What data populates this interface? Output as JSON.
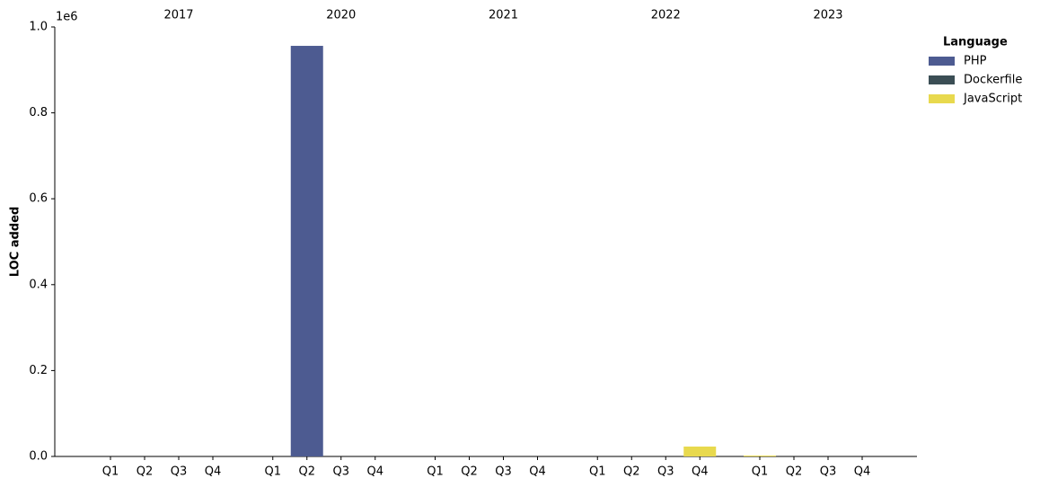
{
  "chart_data": {
    "type": "bar",
    "stacked": true,
    "y_label": "LOC added",
    "y_offset_label": "1e6",
    "legend_title": "Language",
    "legend_position": "upper right outside",
    "groups": [
      "2017",
      "2020",
      "2021",
      "2022",
      "2023"
    ],
    "categories": [
      "Q1",
      "Q2",
      "Q3",
      "Q4",
      "Q1",
      "Q2",
      "Q3",
      "Q4",
      "Q1",
      "Q2",
      "Q3",
      "Q4",
      "Q1",
      "Q2",
      "Q3",
      "Q4",
      "Q1",
      "Q2",
      "Q3",
      "Q4"
    ],
    "series": [
      {
        "name": "PHP",
        "color": "#4d5b91",
        "values": [
          0,
          0,
          0,
          0,
          0,
          956000,
          0,
          0,
          0,
          0,
          0,
          0,
          0,
          0,
          0,
          0,
          0,
          0,
          0,
          0
        ]
      },
      {
        "name": "Dockerfile",
        "color": "#3b4e55",
        "values": [
          0,
          0,
          0,
          0,
          0,
          0,
          0,
          0,
          0,
          0,
          0,
          0,
          0,
          0,
          0,
          0,
          0,
          0,
          0,
          0
        ]
      },
      {
        "name": "JavaScript",
        "color": "#e8d94e",
        "values": [
          0,
          0,
          0,
          0,
          0,
          0,
          0,
          0,
          0,
          0,
          0,
          0,
          0,
          0,
          0,
          23000,
          2000,
          0,
          0,
          0
        ]
      }
    ],
    "ylim": [
      0,
      1000000
    ],
    "yticks": [
      {
        "value": 0,
        "label": "0.0"
      },
      {
        "value": 200000,
        "label": "0.2"
      },
      {
        "value": 400000,
        "label": "0.4"
      },
      {
        "value": 600000,
        "label": "0.6"
      },
      {
        "value": 800000,
        "label": "0.8"
      },
      {
        "value": 1000000,
        "label": "1.0"
      }
    ]
  }
}
